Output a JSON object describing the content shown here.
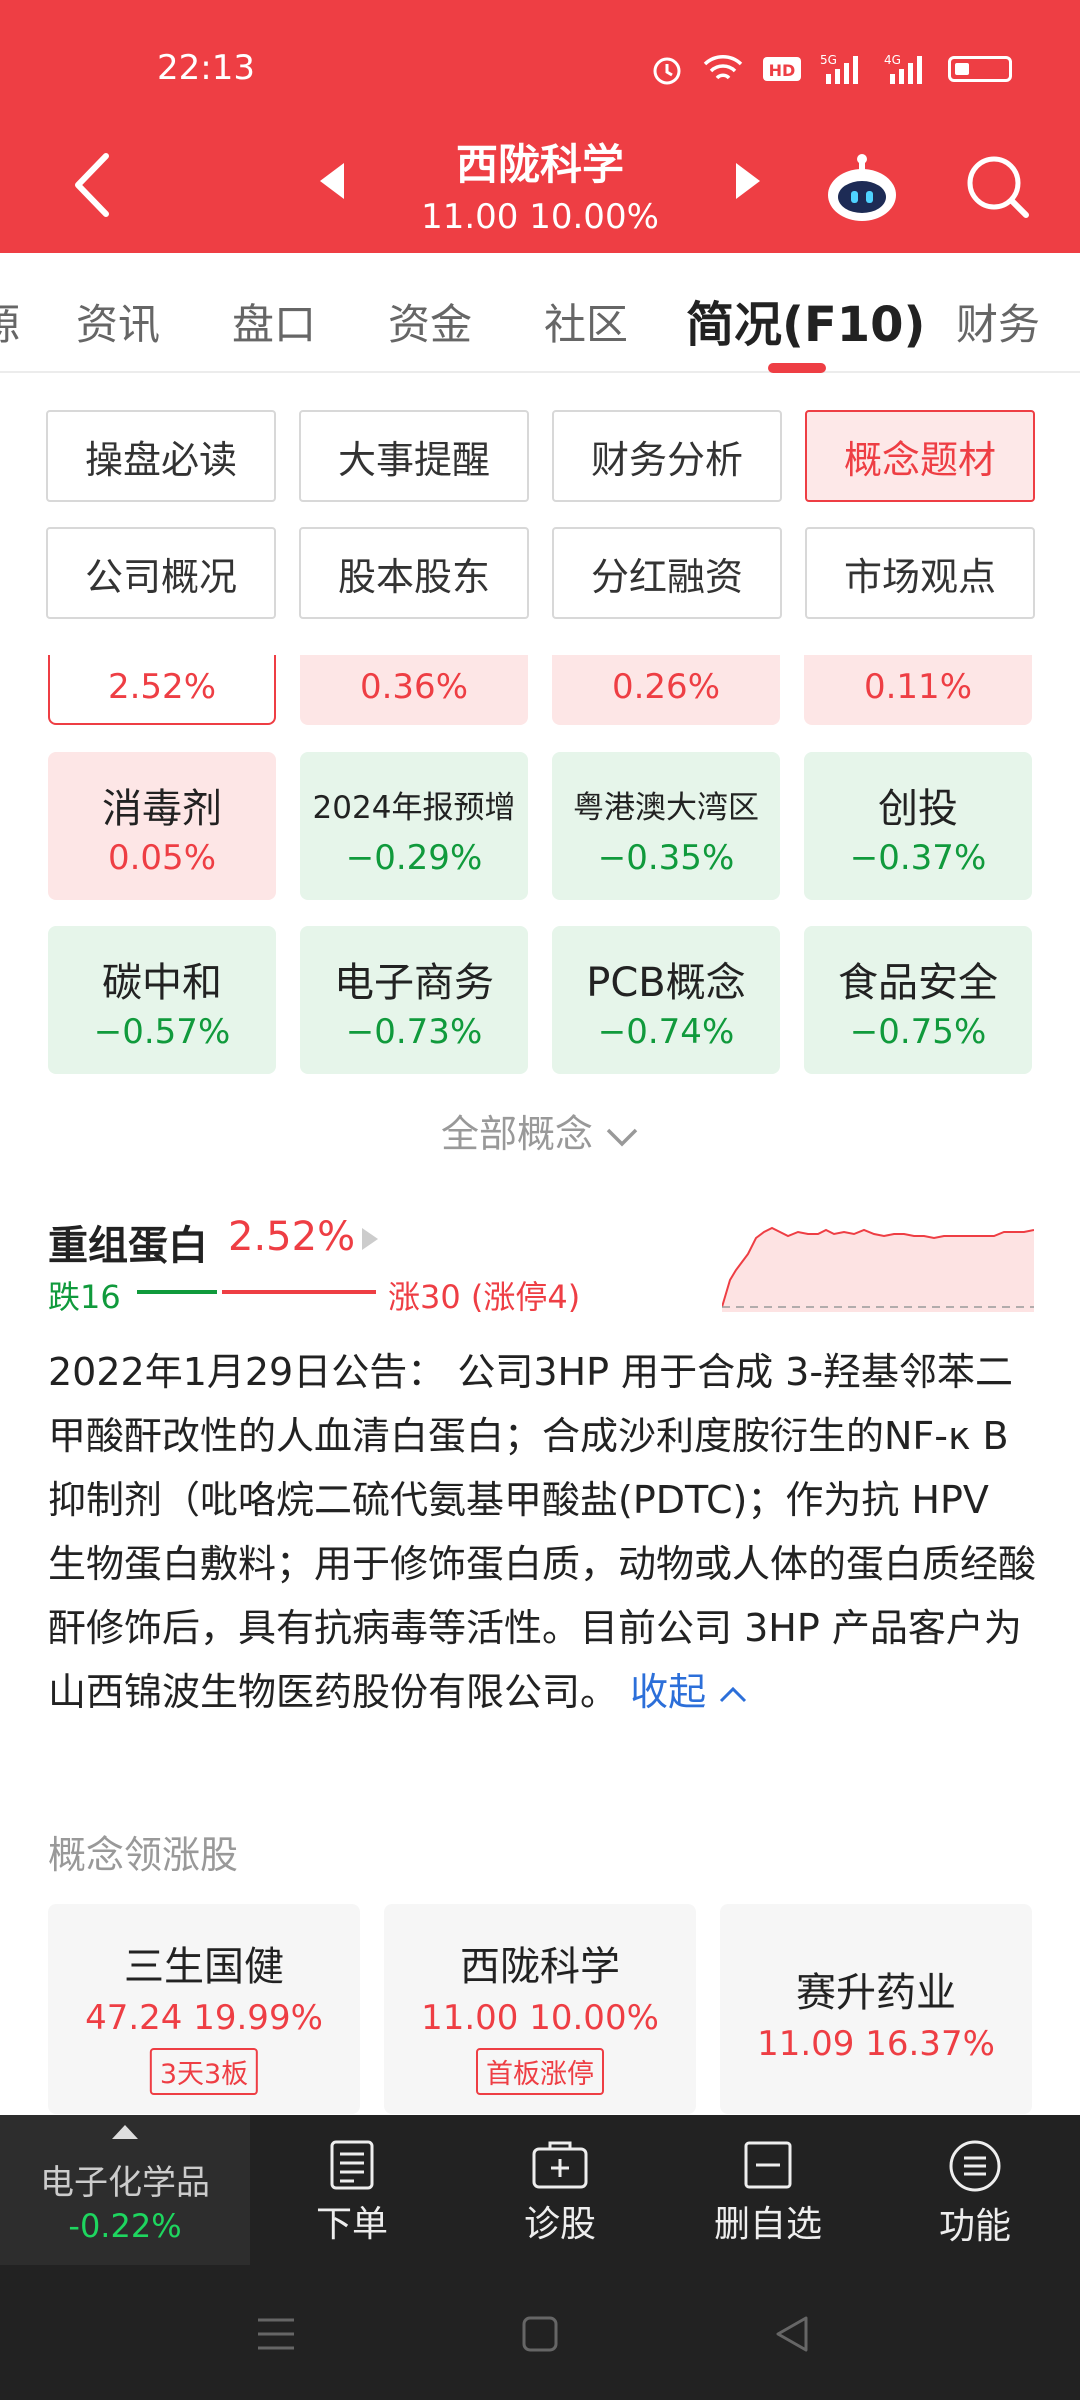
{
  "status_bar": {
    "time": "22:13",
    "icons": [
      "alarm-icon",
      "wifi-icon",
      "hd-icon",
      "signal-5g-icon",
      "signal-4g-icon",
      "battery-icon"
    ]
  },
  "header": {
    "stock_name": "西陇科学",
    "price_change": "11.00 10.00%"
  },
  "tabs": [
    "源",
    "资讯",
    "盘口",
    "资金",
    "社区",
    "简况(F10)",
    "财务"
  ],
  "active_tab": "简况(F10)",
  "sub_buttons": [
    "操盘必读",
    "大事提醒",
    "财务分析",
    "概念题材",
    "公司概况",
    "股本股东",
    "分红融资",
    "市场观点"
  ],
  "partial_row": [
    "2.52%",
    "0.36%",
    "0.26%",
    "0.11%"
  ],
  "concepts": [
    {
      "name": "消毒剂",
      "pct": "0.05%",
      "trend": "up"
    },
    {
      "name": "2024年报预增",
      "pct": "−0.29%",
      "trend": "down"
    },
    {
      "name": "粤港澳大湾区",
      "pct": "−0.35%",
      "trend": "down"
    },
    {
      "name": "创投",
      "pct": "−0.37%",
      "trend": "down"
    },
    {
      "name": "碳中和",
      "pct": "−0.57%",
      "trend": "down"
    },
    {
      "name": "电子商务",
      "pct": "−0.73%",
      "trend": "down"
    },
    {
      "name": "PCB概念",
      "pct": "−0.74%",
      "trend": "down"
    },
    {
      "name": "食品安全",
      "pct": "−0.75%",
      "trend": "down"
    }
  ],
  "all_concepts_label": "全部概念",
  "detail": {
    "title": "重组蛋白",
    "pct": "2.52%",
    "fall": "跌16",
    "rise": "涨30 (涨停4)",
    "text": "2022年1月29日公告： 公司3HP 用于合成 3-羟基邻苯二甲酸酐改性的人血清白蛋白；合成沙利度胺衍生的NF-κ B 抑制剂（吡咯烷二硫代氨基甲酸盐(PDTC)；作为抗 HPV 生物蛋白敷料；用于修饰蛋白质，动物或人体的蛋白质经酸酐修饰后，具有抗病毒等活性。目前公司 3HP 产品客户为山西锦波生物医药股份有限公司。",
    "collapse_label": "收起"
  },
  "leaders_title": "概念领涨股",
  "leaders": [
    {
      "name": "三生国健",
      "value": "47.24 19.99%",
      "badge": "3天3板"
    },
    {
      "name": "西陇科学",
      "value": "11.00 10.00%",
      "badge": "首板涨停"
    },
    {
      "name": "赛升药业",
      "value": "11.09 16.37%",
      "badge": ""
    }
  ],
  "bottom_bar": {
    "sector_name": "电子化学品",
    "sector_pct": "-0.22%",
    "items": [
      "下单",
      "诊股",
      "删自选",
      "功能"
    ]
  },
  "colors": {
    "brand_red": "#ee3e44",
    "up_red": "#ee3e44",
    "down_green": "#109a3c",
    "link_blue": "#2c6fd9"
  }
}
